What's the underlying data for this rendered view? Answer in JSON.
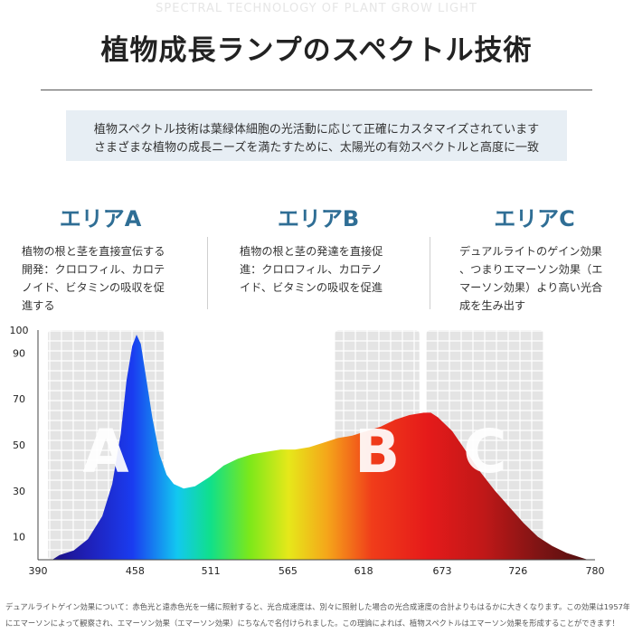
{
  "header": {
    "watermark": "SPECTRAL TECHNOLOGY OF PLANT GROW LIGHT",
    "title": "植物成長ランプのスペクトル技術"
  },
  "info": {
    "line1": "植物スペクトル技術は葉緑体細胞の光活動に応じて正確にカスタマイズされています",
    "line2": "さまざまな植物の成長ニーズを満たすために、太陽光の有効スペクトルと高度に一致"
  },
  "areas": [
    {
      "title": "エリアA",
      "desc": [
        "植物の根と茎を直接宣伝する",
        "開発：クロロフィル、カロテ",
        "ノイド、ビタミンの吸収を促",
        "進する"
      ]
    },
    {
      "title": "エリアB",
      "desc": [
        "植物の根と茎の発達を直接促",
        "進：クロロフィル、カロテノ",
        "イド、ビタミンの吸収を促進"
      ]
    },
    {
      "title": "エリアC",
      "desc": [
        "デュアルライトのゲイン効果",
        "、つまりエマーソン効果（エ",
        "マーソン効果）より高い光合",
        "成を生み出す"
      ]
    }
  ],
  "footnote": {
    "line1": "デュアルライトゲイン効果について：赤色光と遠赤色光を一緒に照射すると、光合成速度は、別々に照射した場合の光合成速度の合計よりもはるかに大きくなります。この効果は1957年",
    "line2": "にエマーソンによって観察され、エマーソン効果（エマーソン効果）にちなんで名付けられました。この理論によれば、植物スペクトルはエマーソン効果を形成することができます！"
  },
  "chart_data": {
    "type": "area",
    "title": "",
    "xlabel": "",
    "ylabel": "",
    "x_ticks": [
      390,
      458,
      511,
      565,
      618,
      673,
      726,
      780
    ],
    "y_ticks": [
      10,
      30,
      50,
      70,
      90,
      100
    ],
    "xlim": [
      390,
      780
    ],
    "ylim": [
      0,
      100
    ],
    "grid": true,
    "zones": [
      {
        "label": "A",
        "x_range": [
          397,
          478
        ]
      },
      {
        "label": "B",
        "x_range": [
          598,
          657
        ]
      },
      {
        "label": "C",
        "x_range": [
          662,
          744
        ]
      }
    ],
    "series": [
      {
        "x": [
          405,
          415,
          425,
          435,
          442,
          448,
          452,
          456,
          459,
          462,
          465,
          470,
          475,
          480,
          485,
          492,
          500,
          510,
          520,
          530,
          540,
          550,
          560,
          570,
          580,
          590,
          600,
          610,
          620,
          630,
          640,
          650,
          660,
          665,
          670,
          680,
          690,
          700,
          710,
          720,
          730,
          740,
          750,
          760,
          770
        ],
        "values": [
          2,
          4,
          9,
          19,
          33,
          55,
          78,
          93,
          98,
          94,
          82,
          62,
          46,
          37,
          33,
          31,
          32,
          36,
          41,
          44,
          46,
          47,
          48,
          48,
          49,
          51,
          53,
          54,
          56,
          58,
          61,
          63,
          64,
          64,
          62,
          56,
          47,
          38,
          30,
          23,
          16,
          10,
          6,
          3,
          1
        ]
      }
    ]
  }
}
